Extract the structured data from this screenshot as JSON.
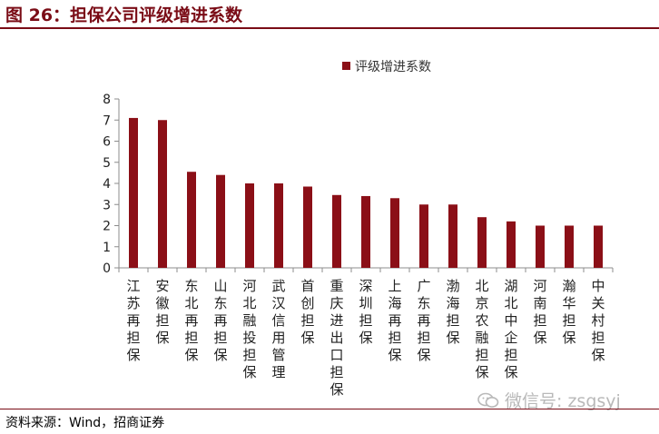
{
  "figure": {
    "title": "图 26：担保公司评级增进系数",
    "source": "资料来源：Wind，招商证券",
    "watermark": "微信号: zsgsyj"
  },
  "colors": {
    "bar": "#8b0f17",
    "title": "#7a0c16",
    "axis": "#8c8c8c",
    "watermark": "#b9b9b9"
  },
  "chart_data": {
    "type": "bar",
    "title": "",
    "xlabel": "",
    "ylabel": "",
    "ylim": [
      0,
      8
    ],
    "yticks": [
      "0",
      "1",
      "2",
      "3",
      "4",
      "5",
      "6",
      "7",
      "8"
    ],
    "grid": false,
    "legend_position": "top",
    "categories": [
      "江苏再担保",
      "安徽担保",
      "东北再担保",
      "山东再担保",
      "河北融投担保",
      "武汉信用管理",
      "首创担保",
      "重庆进出口担保",
      "深圳担保",
      "上海再担保",
      "广东再担保",
      "渤海担保",
      "北京农融担保",
      "湖北中企担保",
      "河南担保",
      "瀚华担保",
      "中关村担保"
    ],
    "series": [
      {
        "name": "评级增进系数",
        "values": [
          7.1,
          7.0,
          4.55,
          4.4,
          4.0,
          4.0,
          3.85,
          3.45,
          3.4,
          3.3,
          3.0,
          3.0,
          2.4,
          2.2,
          2.0,
          2.0,
          2.0
        ]
      }
    ]
  }
}
